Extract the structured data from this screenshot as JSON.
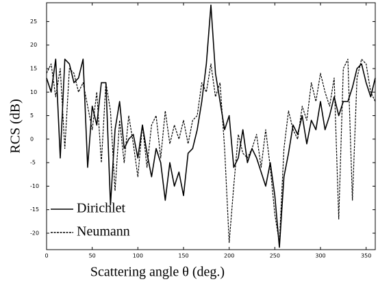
{
  "chart_data": {
    "type": "line",
    "xlabel": "Scattering angle θ (deg.)",
    "ylabel": "RCS (dB)",
    "x": [
      0,
      5,
      10,
      15,
      20,
      25,
      30,
      35,
      40,
      45,
      50,
      55,
      60,
      65,
      70,
      75,
      80,
      85,
      90,
      95,
      100,
      105,
      110,
      115,
      120,
      125,
      130,
      135,
      140,
      145,
      150,
      155,
      160,
      165,
      170,
      175,
      180,
      185,
      190,
      195,
      200,
      205,
      210,
      215,
      220,
      225,
      230,
      235,
      240,
      245,
      250,
      255,
      260,
      265,
      270,
      275,
      280,
      285,
      290,
      295,
      300,
      305,
      310,
      315,
      320,
      325,
      330,
      335,
      340,
      345,
      350,
      355,
      360
    ],
    "series": [
      {
        "name": "Dirichlet",
        "color": "#000000",
        "dash": "solid",
        "values": [
          13,
          10,
          17,
          -4,
          17,
          16,
          12,
          13,
          17,
          -6,
          7,
          3,
          12,
          12,
          -14,
          2,
          8,
          -2,
          0,
          1,
          -4,
          3,
          -3,
          -8,
          -2,
          -5,
          -13,
          -5,
          -10,
          -7,
          -12,
          -3,
          -2,
          2,
          8,
          16,
          28.5,
          14,
          8,
          2,
          5,
          -6,
          -4,
          2,
          -5,
          -2,
          -4,
          -7,
          -10,
          -5,
          -12,
          -23,
          -8,
          -3,
          3,
          1,
          5,
          -1,
          4,
          2,
          8,
          2,
          5,
          9,
          5,
          8,
          8,
          11,
          15,
          16,
          12,
          9,
          13
        ]
      },
      {
        "name": "Neumann",
        "color": "#000000",
        "dash": "dashed",
        "values": [
          14,
          16,
          9,
          15,
          -2,
          15,
          14,
          10,
          12,
          7,
          2,
          10,
          -5,
          12,
          6,
          -11,
          4,
          -5,
          5,
          -1,
          -8,
          3,
          -6,
          3,
          5,
          -4,
          6,
          -1,
          3,
          0,
          4,
          -1,
          4,
          5,
          12,
          10,
          16,
          9,
          12,
          -2,
          -22,
          -10,
          1,
          -3,
          -4,
          -2,
          1,
          -6,
          2,
          -6,
          -16,
          -22,
          -2,
          6,
          2,
          0,
          7,
          4,
          12,
          8,
          14,
          10,
          7,
          13,
          -17,
          15,
          17,
          -13,
          13,
          17,
          16,
          10,
          8
        ]
      }
    ],
    "xlim": [
      0,
      360
    ],
    "xticks": [
      0,
      50,
      100,
      150,
      200,
      250,
      300,
      350
    ],
    "ylim": [
      -23.5,
      29
    ],
    "yticks": [
      -20,
      -15,
      -10,
      -5,
      0,
      5,
      10,
      15,
      20,
      25
    ],
    "legend": "lower left"
  }
}
